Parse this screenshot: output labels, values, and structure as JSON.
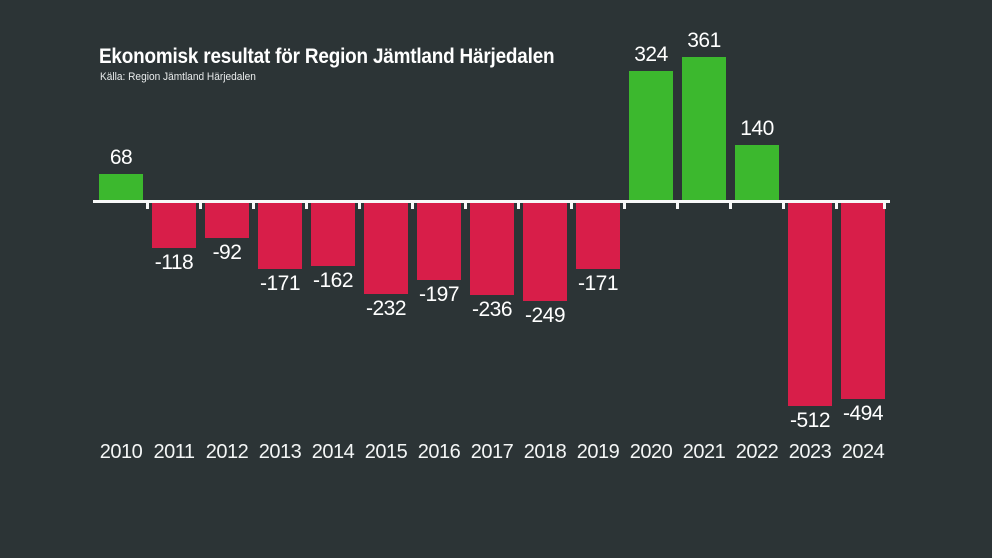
{
  "header": {
    "title": "Ekonomisk resultat för Region Jämtland Härjedalen",
    "source": "Källa: Region Jämtland Härjedalen"
  },
  "chart_data": {
    "type": "bar",
    "title": "Ekonomisk resultat för Region Jämtland Härjedalen",
    "source_note": "Källa: Region Jämtland Härjedalen",
    "categories": [
      "2010",
      "2011",
      "2012",
      "2013",
      "2014",
      "2015",
      "2016",
      "2017",
      "2018",
      "2019",
      "2020",
      "2021",
      "2022",
      "2023",
      "2024"
    ],
    "values": [
      68,
      -118,
      -92,
      -171,
      -162,
      -232,
      -197,
      -236,
      -249,
      -171,
      324,
      361,
      140,
      -512,
      -494
    ],
    "value_labels_shown": true,
    "xlabel": "",
    "ylabel": "",
    "ylim": [
      -560,
      400
    ],
    "grid": false,
    "legend": "none",
    "colors": {
      "positive_bar": "#3cb82e",
      "negative_bar": "#d81e49",
      "axis": "#f8f9f9",
      "text": "#ffffff",
      "background": "#2c3436"
    }
  }
}
